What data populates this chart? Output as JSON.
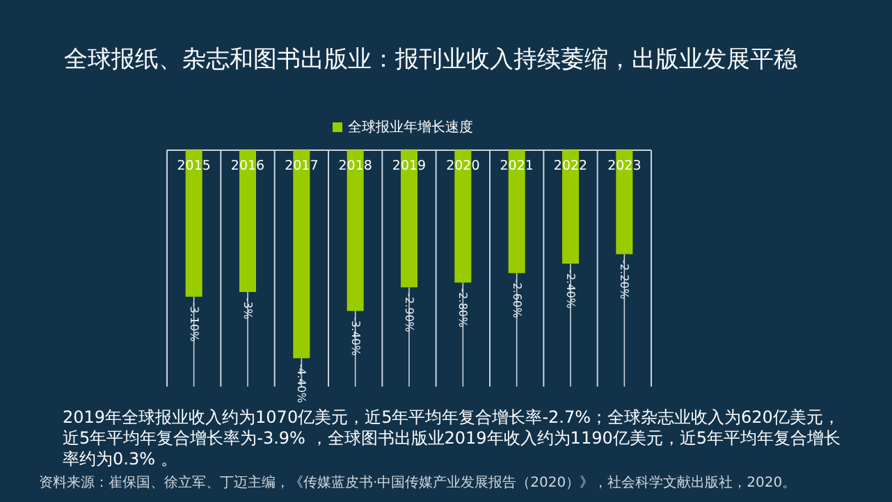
{
  "chart_data": {
    "type": "bar",
    "title": "全球报纸、杂志和图书出版业：报刊业收入持续萎缩，出版业发展平稳",
    "categories": [
      "2015",
      "2016",
      "2017",
      "2018",
      "2019",
      "2020",
      "2021",
      "2022",
      "2023"
    ],
    "series": [
      {
        "name": "全球报业年增长速度",
        "color": "#99cc00",
        "values": [
          -3.1,
          -3,
          -4.4,
          -3.4,
          -2.9,
          -2.8,
          -2.6,
          -2.4,
          -2.2
        ],
        "value_labels": [
          "-3.10%",
          "-3%",
          "-4.40%",
          "-3.40%",
          "-2.90%",
          "-2.80%",
          "-2.60%",
          "-2.40%",
          "-2.20%"
        ]
      }
    ],
    "ylim": [
      -5,
      0
    ],
    "grid": "x",
    "legend": "top",
    "tick_labels": "x",
    "annotations": [
      "2019年全球报业收入约为1070亿美元，近5年平均年复合增长率-2.7%；全球杂志业收入为620亿美元，近5年平均年复合增长率为-3.9% ，全球图书出版业2019年收入约为1190亿美元，近5年平均年复合增长率约为0.3% 。",
      "资料来源：崔保国、徐立军、丁迈主编，《传媒蓝皮书·中国传媒产业发展报告（2020）》，社会科学文献出版社，2020。"
    ]
  }
}
